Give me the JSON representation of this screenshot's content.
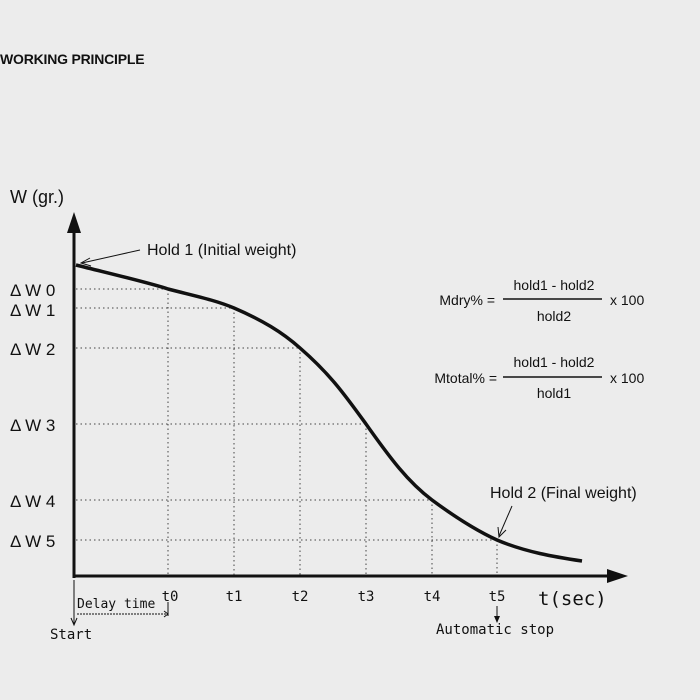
{
  "title": "WORKING PRINCIPLE",
  "diagram": {
    "y_axis_label": "W (gr.)",
    "x_axis_label": "t(sec)",
    "y_levels": [
      "Δ W 0",
      "Δ W 1",
      "Δ W 2",
      "Δ W 3",
      "Δ W 4",
      "Δ W 5"
    ],
    "x_ticks": [
      "t0",
      "t1",
      "t2",
      "t3",
      "t4",
      "t5"
    ],
    "hold1_label": "Hold 1 (Initial weight)",
    "hold2_label": "Hold 2 (Final weight)",
    "delay_label": "Delay time",
    "start_label": "Start",
    "auto_stop_label": "Automatic stop"
  },
  "formulas": {
    "dry": {
      "lhs": "Mdry% =",
      "numerator": "hold1 - hold2",
      "denominator": "hold2",
      "factor": "x 100"
    },
    "total": {
      "lhs": "Mtotal% =",
      "numerator": "hold1 - hold2",
      "denominator": "hold1",
      "factor": "x 100"
    }
  }
}
